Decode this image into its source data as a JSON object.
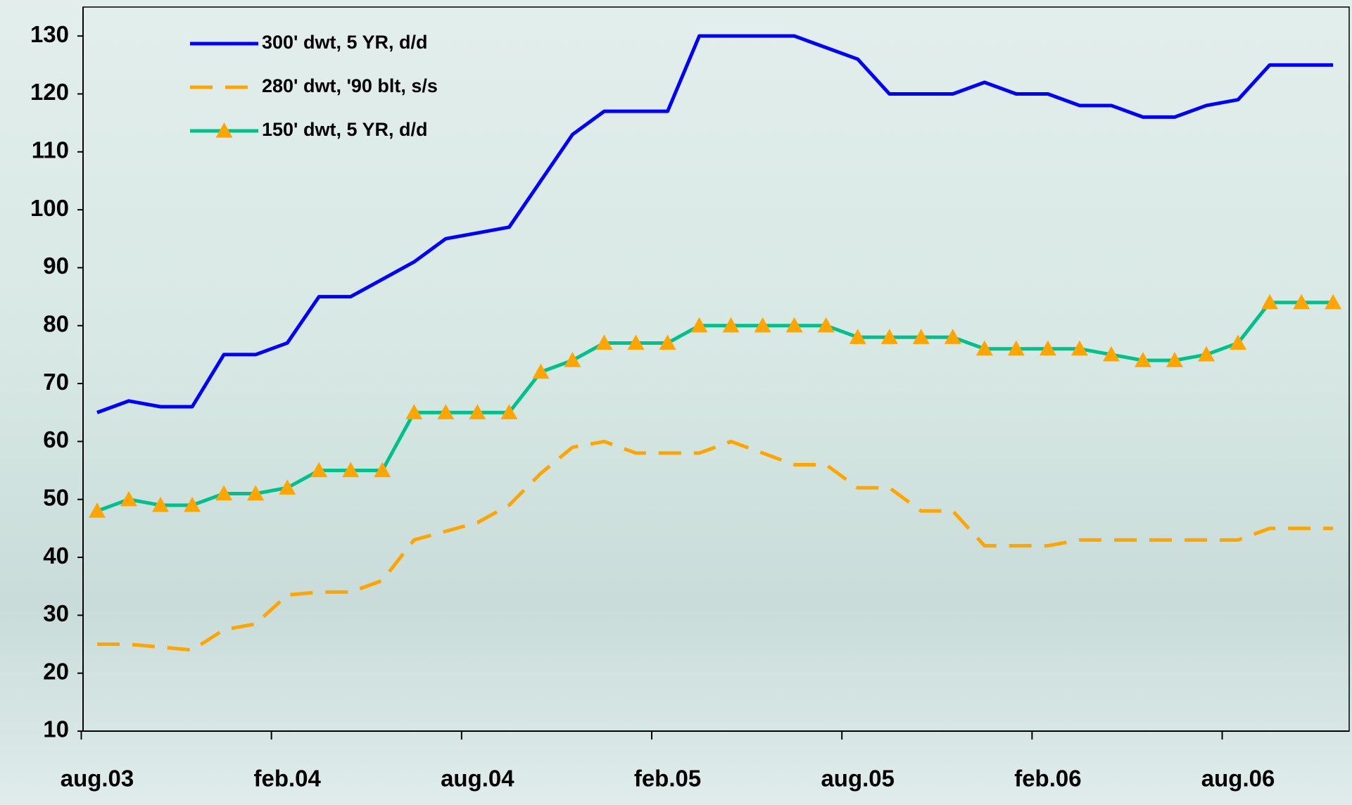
{
  "chart_data": {
    "type": "line",
    "categories": [
      "aug.03",
      null,
      null,
      null,
      null,
      null,
      "feb.04",
      null,
      null,
      null,
      null,
      null,
      "aug.04",
      null,
      null,
      null,
      null,
      null,
      "feb.05",
      null,
      null,
      null,
      null,
      null,
      "aug.05",
      null,
      null,
      null,
      null,
      null,
      "feb.06",
      null,
      null,
      null,
      null,
      null,
      "aug.06",
      null,
      null,
      null
    ],
    "series": [
      {
        "name": "300' dwt, 5 YR, d/d",
        "color": "#0000ff",
        "style": "solid",
        "values": [
          65,
          67,
          66,
          66,
          75,
          75,
          77,
          85,
          85,
          88,
          91,
          95,
          96,
          97,
          105,
          113,
          117,
          117,
          117,
          130,
          130,
          130,
          130,
          128,
          126,
          120,
          120,
          120,
          122,
          120,
          120,
          118,
          118,
          116,
          116,
          118,
          119,
          125,
          125,
          125
        ]
      },
      {
        "name": "280' dwt, '90 blt, s/s",
        "color": "#ffa500",
        "style": "dashed",
        "values": [
          25,
          25,
          24.5,
          24,
          27.5,
          28.5,
          33.5,
          34,
          34,
          36,
          43,
          44.5,
          46,
          49,
          54.5,
          59,
          60,
          58,
          58,
          58,
          60,
          58,
          56,
          56,
          52,
          52,
          48,
          48,
          42,
          42,
          42,
          43,
          43,
          43,
          43,
          43,
          43,
          45,
          45,
          45
        ]
      },
      {
        "name": "150' dwt, 5 YR, d/d",
        "color": "#00c08b",
        "marker": "triangle",
        "marker_color": "#ffa500",
        "style": "solid",
        "values": [
          48,
          50,
          49,
          49,
          51,
          51,
          52,
          55,
          55,
          55,
          65,
          65,
          65,
          65,
          72,
          74,
          77,
          77,
          77,
          80,
          80,
          80,
          80,
          80,
          78,
          78,
          78,
          78,
          76,
          76,
          76,
          76,
          75,
          74,
          74,
          75,
          77,
          84,
          84,
          84
        ]
      }
    ],
    "ylim": [
      10,
      135
    ],
    "yticks": [
      10,
      20,
      30,
      40,
      50,
      60,
      70,
      80,
      90,
      100,
      110,
      120,
      130
    ],
    "legend": "upper left",
    "grid": false
  }
}
